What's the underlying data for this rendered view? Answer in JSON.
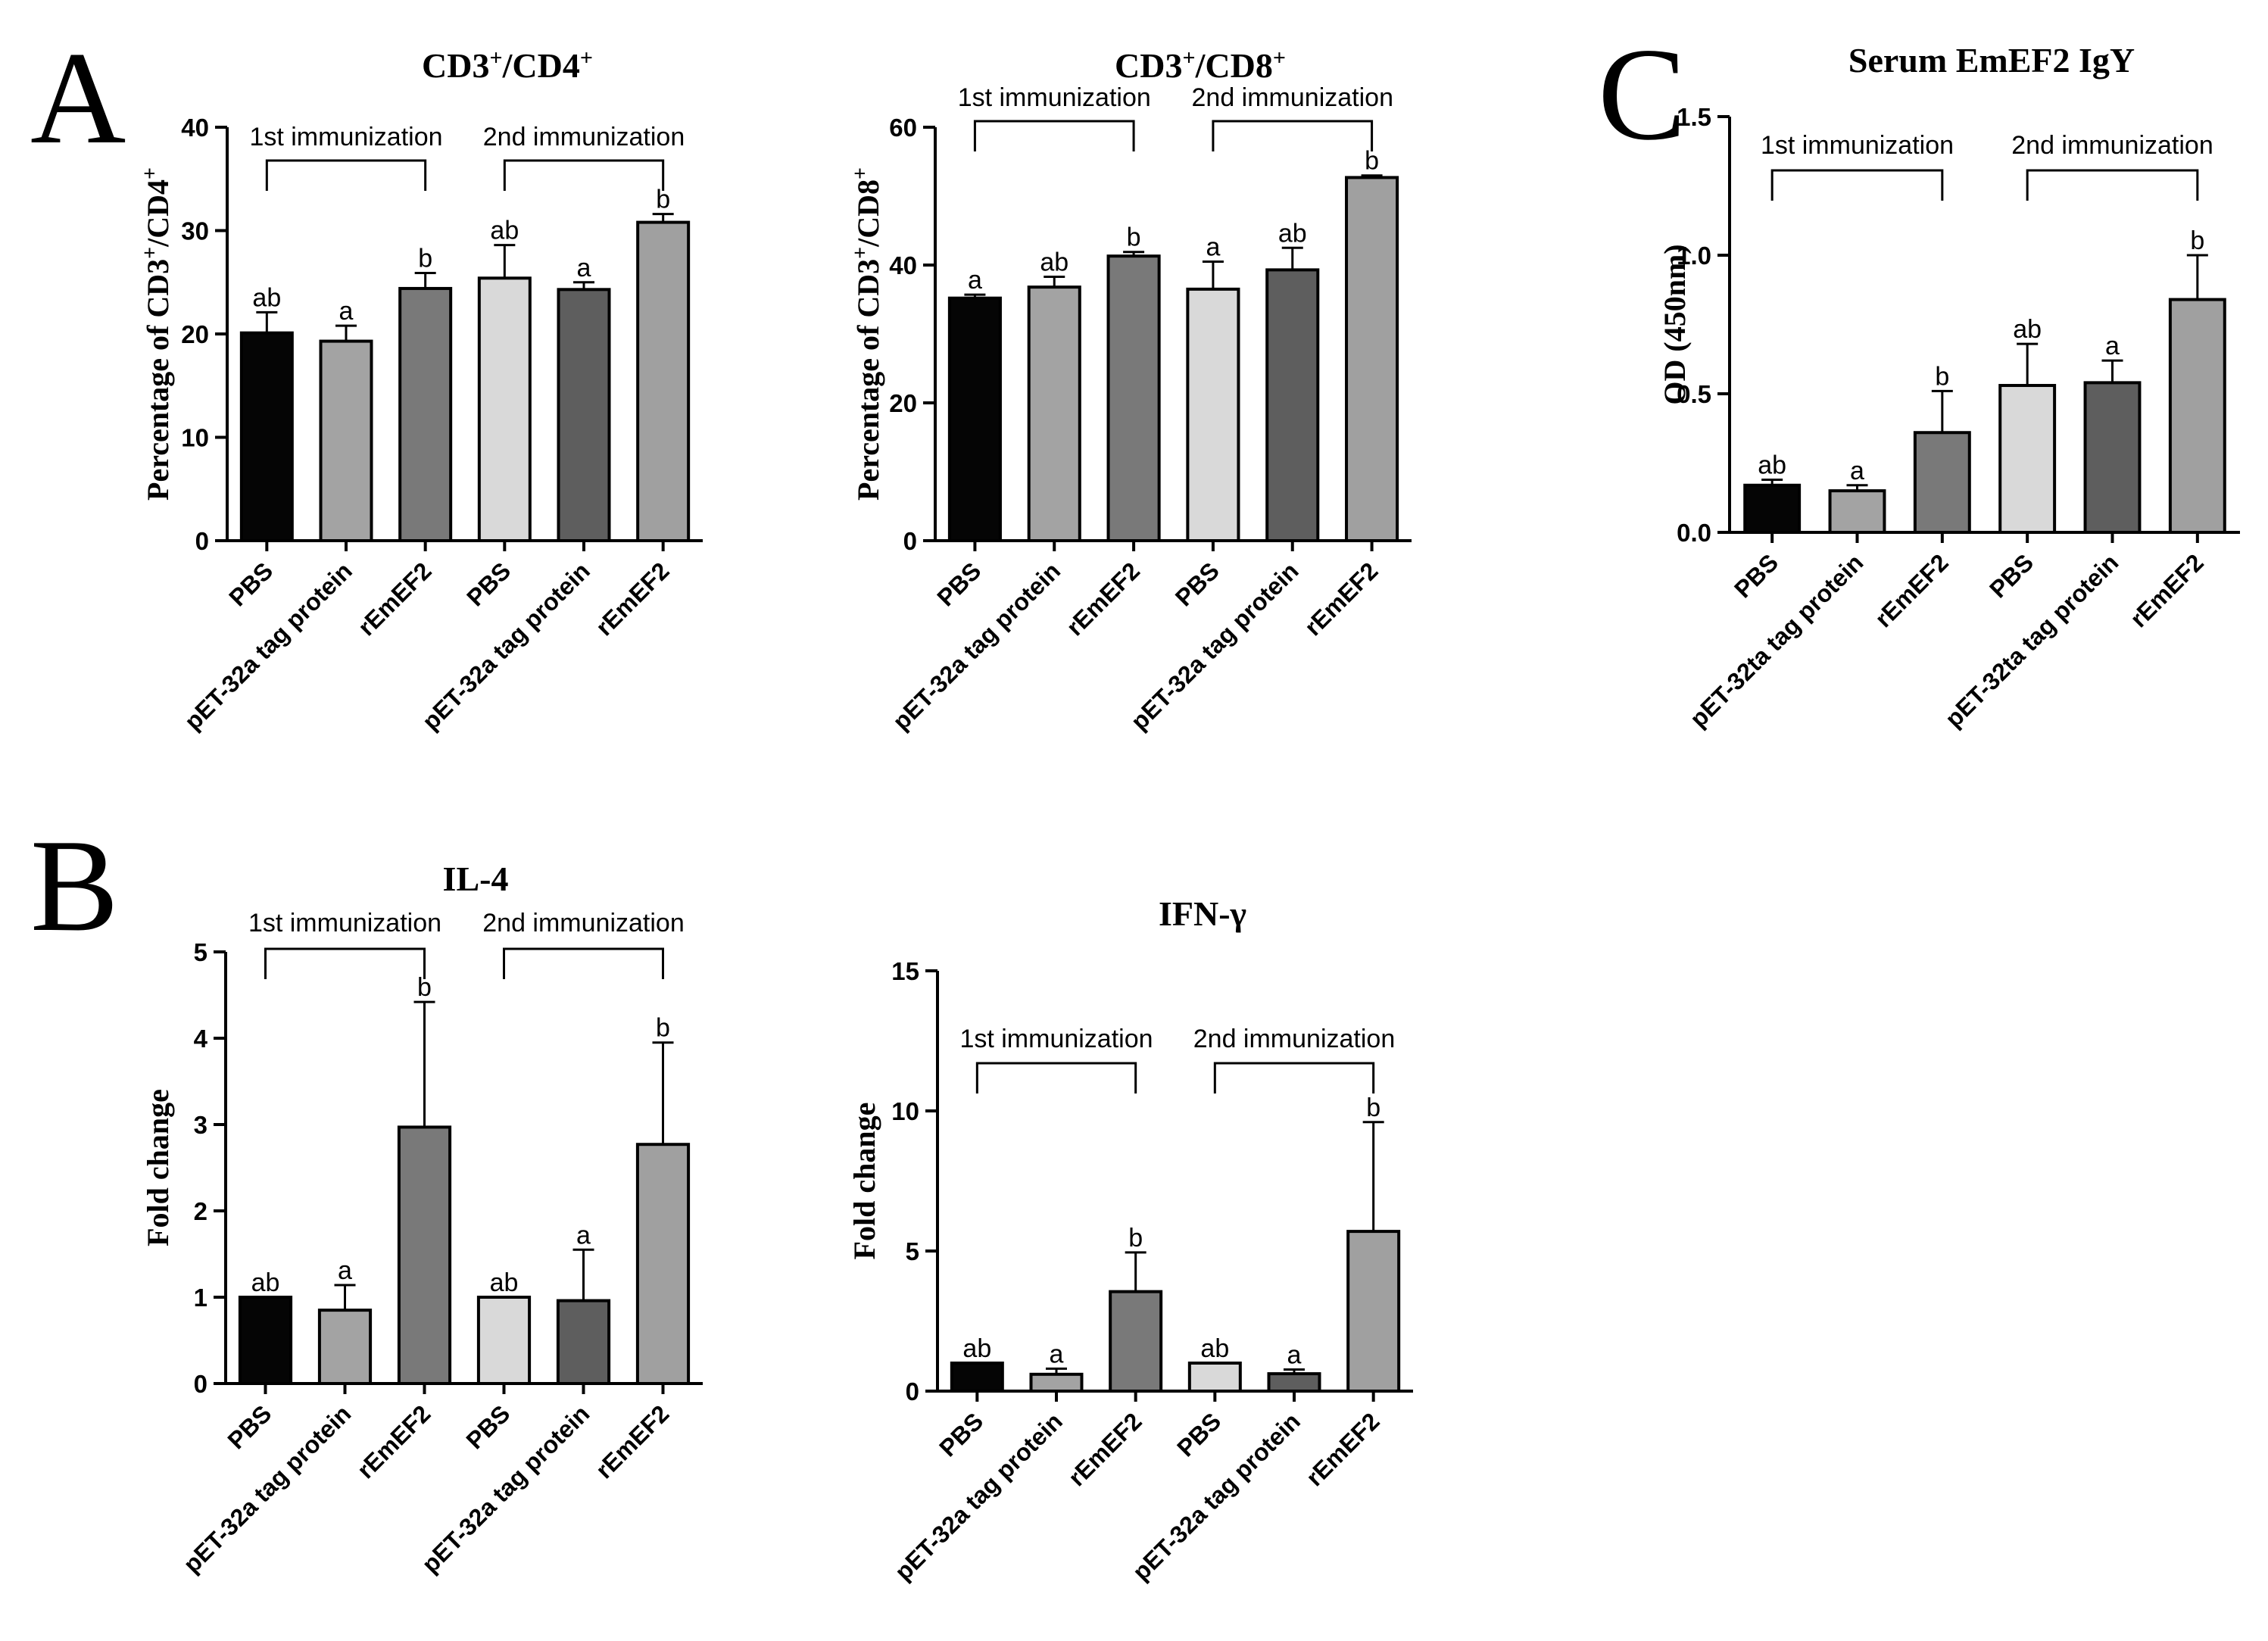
{
  "panel_letters": [
    "A",
    "B",
    "C"
  ],
  "colors": {
    "axis": "#000000",
    "bars": [
      "#050505",
      "#a3a3a3",
      "#797979",
      "#d9d9d9",
      "#5e5e5e",
      "#a0a0a0"
    ]
  },
  "chart_data": [
    {
      "id": "cd4",
      "type": "bar",
      "panel": "A",
      "title_main": "CD3",
      "title_sup1": "+",
      "title_mid": "/CD4",
      "title_sup2": "+",
      "ylabel_main": "Percentage of CD3",
      "ylabel_sup1": "+",
      "ylabel_mid": "/CD4",
      "ylabel_sup2": "+",
      "categories": [
        "PBS",
        "pET-32a tag protein",
        "rEmEF2",
        "PBS",
        "pET-32a tag protein",
        "rEmEF2"
      ],
      "values": [
        20.1,
        19.3,
        24.4,
        25.4,
        24.3,
        30.8
      ],
      "errors": [
        2.0,
        1.5,
        1.5,
        3.2,
        0.7,
        0.8
      ],
      "significance": [
        "ab",
        "a",
        "b",
        "ab",
        "a",
        "b"
      ],
      "ylim": [
        0,
        40
      ],
      "yticks": [
        "0",
        "10",
        "20",
        "30",
        "40"
      ],
      "groups": [
        "1st immunization",
        "2nd immunization"
      ]
    },
    {
      "id": "cd8",
      "type": "bar",
      "panel": "A",
      "title_main": "CD3",
      "title_sup1": "+",
      "title_mid": "/CD8",
      "title_sup2": "+",
      "ylabel_main": "Percentage of CD3",
      "ylabel_sup1": "+",
      "ylabel_mid": "/CD8",
      "ylabel_sup2": "+",
      "categories": [
        "PBS",
        "pET-32a tag protein",
        "rEmEF2",
        "PBS",
        "pET-32a tag protein",
        "rEmEF2"
      ],
      "values": [
        35.2,
        36.8,
        41.3,
        36.5,
        39.3,
        52.7
      ],
      "errors": [
        0.5,
        1.5,
        0.6,
        4.0,
        3.2,
        0.3
      ],
      "significance": [
        "a",
        "ab",
        "b",
        "a",
        "ab",
        "b"
      ],
      "ylim": [
        0,
        60
      ],
      "yticks": [
        "0",
        "20",
        "40",
        "60"
      ],
      "groups": [
        "1st immunization",
        "2nd immunization"
      ]
    },
    {
      "id": "il4",
      "type": "bar",
      "panel": "B",
      "title_main": "IL-4",
      "ylabel_main": "Fold change",
      "categories": [
        "PBS",
        "pET-32a tag protein",
        "rEmEF2",
        "PBS",
        "pET-32a tag protein",
        "rEmEF2"
      ],
      "values": [
        1.0,
        0.85,
        2.97,
        1.0,
        0.96,
        2.77
      ],
      "errors": [
        0.0,
        0.29,
        1.45,
        0.0,
        0.59,
        1.18
      ],
      "significance": [
        "ab",
        "a",
        "b",
        "ab",
        "a",
        "b"
      ],
      "ylim": [
        0,
        5
      ],
      "yticks": [
        "0",
        "1",
        "2",
        "3",
        "4",
        "5"
      ],
      "groups": [
        "1st immunization",
        "2nd immunization"
      ]
    },
    {
      "id": "ifng",
      "type": "bar",
      "panel": "B",
      "title_main": "IFN-γ",
      "ylabel_main": "Fold change",
      "categories": [
        "PBS",
        "pET-32a tag protein",
        "rEmEF2",
        "PBS",
        "pET-32a tag protein",
        "rEmEF2"
      ],
      "values": [
        1.0,
        0.6,
        3.55,
        1.0,
        0.62,
        5.7
      ],
      "errors": [
        0.0,
        0.2,
        1.4,
        0.0,
        0.15,
        3.9
      ],
      "significance": [
        "ab",
        "a",
        "b",
        "ab",
        "a",
        "b"
      ],
      "ylim": [
        0,
        15
      ],
      "yticks": [
        "0",
        "5",
        "10",
        "15"
      ],
      "groups": [
        "1st immunization",
        "2nd immunization"
      ]
    },
    {
      "id": "igy",
      "type": "bar",
      "panel": "C",
      "title_main": "Serum EmEF2 IgY",
      "ylabel_main": "OD (450nm)",
      "categories": [
        "PBS",
        "pET-32ta tag protein",
        "rEmEF2",
        "PBS",
        "pET-32ta tag protein",
        "rEmEF2"
      ],
      "values": [
        0.17,
        0.15,
        0.36,
        0.53,
        0.54,
        0.84
      ],
      "errors": [
        0.02,
        0.02,
        0.15,
        0.15,
        0.08,
        0.16
      ],
      "significance": [
        "ab",
        "a",
        "b",
        "ab",
        "a",
        "b"
      ],
      "ylim": [
        0,
        1.5
      ],
      "yticks": [
        "0.0",
        "0.5",
        "1.0",
        "1.5"
      ],
      "groups": [
        "1st immunization",
        "2nd immunization"
      ]
    }
  ]
}
